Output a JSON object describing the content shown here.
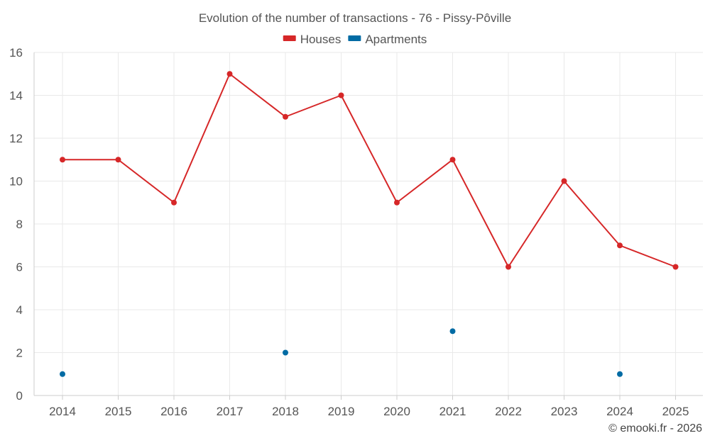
{
  "chart_data": {
    "type": "line",
    "title": "Evolution of the number of transactions - 76 - Pissy-Pôville",
    "categories": [
      "2014",
      "2015",
      "2016",
      "2017",
      "2018",
      "2019",
      "2020",
      "2021",
      "2022",
      "2023",
      "2024",
      "2025"
    ],
    "series": [
      {
        "name": "Houses",
        "color": "#d62728",
        "show_line": true,
        "values": [
          11,
          11,
          9,
          15,
          13,
          14,
          9,
          11,
          6,
          10,
          7,
          6
        ]
      },
      {
        "name": "Apartments",
        "color": "#006ba4",
        "show_line": false,
        "values": [
          1,
          null,
          null,
          null,
          2,
          null,
          null,
          3,
          null,
          null,
          1,
          null
        ]
      }
    ],
    "ylim": [
      0,
      16
    ],
    "yticks": [
      0,
      2,
      4,
      6,
      8,
      10,
      12,
      14,
      16
    ],
    "grid": true,
    "legend_position": "top-center",
    "xlabel": "",
    "ylabel": ""
  },
  "credit": "© emooki.fr - 2026"
}
